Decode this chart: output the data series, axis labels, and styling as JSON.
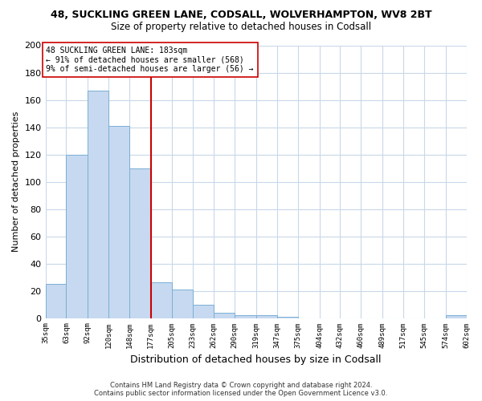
{
  "title": "48, SUCKLING GREEN LANE, CODSALL, WOLVERHAMPTON, WV8 2BT",
  "subtitle": "Size of property relative to detached houses in Codsall",
  "xlabel": "Distribution of detached houses by size in Codsall",
  "ylabel": "Number of detached properties",
  "bar_edges": [
    35,
    63,
    92,
    120,
    148,
    177,
    205,
    233,
    262,
    290,
    319,
    347,
    375,
    404,
    432,
    460,
    489,
    517,
    545,
    574,
    602
  ],
  "bar_heights": [
    25,
    120,
    167,
    141,
    110,
    26,
    21,
    10,
    4,
    2,
    2,
    1,
    0,
    0,
    0,
    0,
    0,
    0,
    0,
    2
  ],
  "tick_labels": [
    "35sqm",
    "63sqm",
    "92sqm",
    "120sqm",
    "148sqm",
    "177sqm",
    "205sqm",
    "233sqm",
    "262sqm",
    "290sqm",
    "319sqm",
    "347sqm",
    "375sqm",
    "404sqm",
    "432sqm",
    "460sqm",
    "489sqm",
    "517sqm",
    "545sqm",
    "574sqm",
    "602sqm"
  ],
  "bar_color": "#c6d9f0",
  "bar_edge_color": "#7bafd4",
  "vline_x": 177,
  "vline_color": "#cc0000",
  "annotation_line1": "48 SUCKLING GREEN LANE: 183sqm",
  "annotation_line2": "← 91% of detached houses are smaller (568)",
  "annotation_line3": "9% of semi-detached houses are larger (56) →",
  "annotation_box_color": "#ffffff",
  "annotation_box_edge": "#cc0000",
  "ylim": [
    0,
    200
  ],
  "yticks": [
    0,
    20,
    40,
    60,
    80,
    100,
    120,
    140,
    160,
    180,
    200
  ],
  "footer_line1": "Contains HM Land Registry data © Crown copyright and database right 2024.",
  "footer_line2": "Contains public sector information licensed under the Open Government Licence v3.0.",
  "background_color": "#ffffff",
  "grid_color": "#c8d8e8"
}
